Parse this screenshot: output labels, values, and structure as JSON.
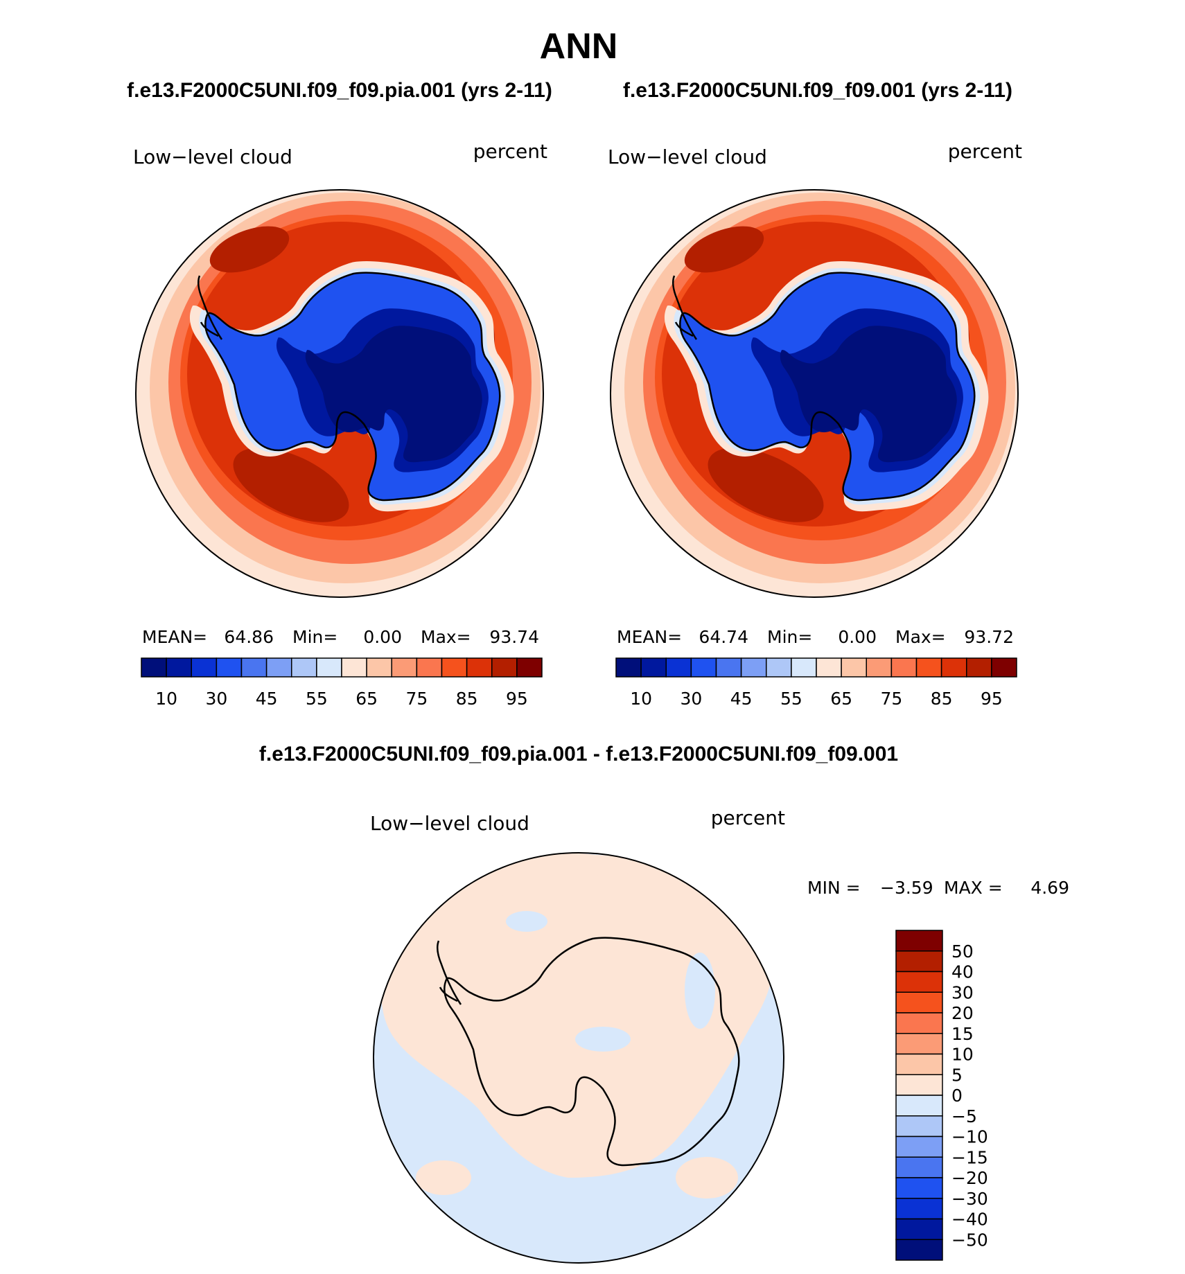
{
  "title": "ANN",
  "panels": [
    {
      "case_title": "f.e13.F2000C5UNI.f09_f09.pia.001 (yrs 2-11)",
      "left_label": "Low−level cloud",
      "right_label": "percent",
      "stats": {
        "mean_label": "MEAN=",
        "mean": "64.86",
        "min_label": "Min=",
        "min": "0.00",
        "max_label": "Max=",
        "max": "93.74"
      }
    },
    {
      "case_title": "f.e13.F2000C5UNI.f09_f09.001 (yrs 2-11)",
      "left_label": "Low−level cloud",
      "right_label": "percent",
      "stats": {
        "mean_label": "MEAN=",
        "mean": "64.74",
        "min_label": "Min=",
        "min": "0.00",
        "max_label": "Max=",
        "max": "93.72"
      }
    }
  ],
  "colorbar_top": {
    "colors": [
      "#000f7a",
      "#00189e",
      "#0a32d4",
      "#1f52f0",
      "#4a75f0",
      "#7d9ff5",
      "#aec7f7",
      "#d8e8fb",
      "#fde5d6",
      "#fcc6a8",
      "#fb9b76",
      "#fa764f",
      "#f5521d",
      "#dc3208",
      "#b31f00",
      "#7e0000"
    ],
    "tick_labels": [
      "10",
      "30",
      "45",
      "55",
      "65",
      "75",
      "85",
      "95"
    ]
  },
  "diff": {
    "title": "f.e13.F2000C5UNI.f09_f09.pia.001 - f.e13.F2000C5UNI.f09_f09.001",
    "left_label": "Low−level cloud",
    "right_label": "percent",
    "min_label": "MIN =",
    "min": "−3.59",
    "max_label": "MAX =",
    "max": "4.69",
    "colorbar": {
      "colors": [
        "#7e0000",
        "#b31f00",
        "#dc3208",
        "#f5521d",
        "#fa764f",
        "#fb9b76",
        "#fcc6a8",
        "#fde5d6",
        "#d8e8fb",
        "#aec7f7",
        "#7d9ff5",
        "#4a75f0",
        "#1f52f0",
        "#0a32d4",
        "#00189e",
        "#000f7a"
      ],
      "tick_labels": [
        "50",
        "40",
        "30",
        "20",
        "15",
        "10",
        "5",
        "0",
        "−5",
        "−10",
        "−15",
        "−20",
        "−30",
        "−40",
        "−50"
      ]
    }
  },
  "map_colors": {
    "ocean_outer": "#fa764f",
    "ocean_mid": "#dc3208",
    "ocean_dark": "#b31f00",
    "ocean_darkest": "#7e0000",
    "rim_light": "#fcc6a8",
    "rim_pale": "#fde5d6",
    "ice_shelf": "#d8e8fb",
    "land_blue": "#1f52f0",
    "land_deep": "#000f7a",
    "diff_pos": "#fde5d6",
    "diff_neg": "#d8e8fb"
  }
}
